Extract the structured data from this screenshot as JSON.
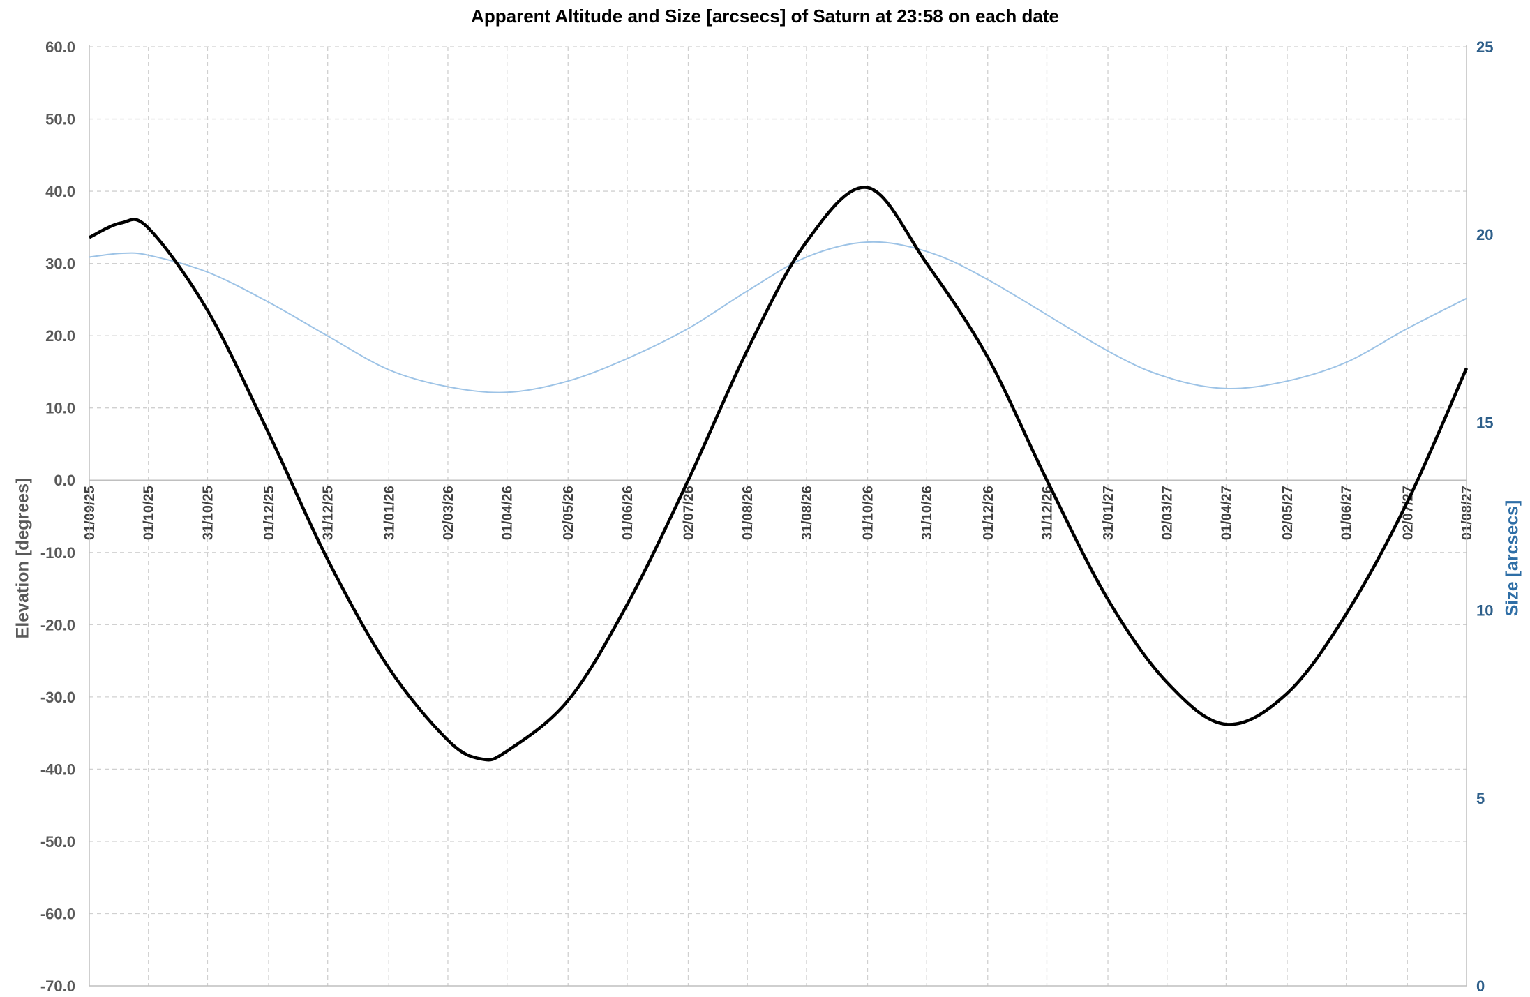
{
  "chart_data": {
    "type": "line",
    "title": "Apparent Altitude and Size [arcsecs] of Saturn at 23:58 on each date",
    "ylabel": "Elevation [degrees]",
    "ylabel_right": "Size [arcsecs]",
    "xlabel": "",
    "x_tick_labels": [
      "01/09/25",
      "01/10/25",
      "31/10/25",
      "01/12/25",
      "31/12/25",
      "31/01/26",
      "02/03/26",
      "01/04/26",
      "02/05/26",
      "01/06/26",
      "02/07/26",
      "01/08/26",
      "31/08/26",
      "01/10/26",
      "31/10/26",
      "01/12/26",
      "31/12/26",
      "31/01/27",
      "02/03/27",
      "01/04/27",
      "02/05/27",
      "01/06/27",
      "02/07/27",
      "01/08/27"
    ],
    "y_tick_labels": [
      "60.0",
      "50.0",
      "40.0",
      "30.0",
      "20.0",
      "10.0",
      "0.0",
      "-10.0",
      "-20.0",
      "-30.0",
      "-40.0",
      "-50.0",
      "-60.0",
      "-70.0"
    ],
    "y_right_tick_labels": [
      "25",
      "20",
      "15",
      "10",
      "5",
      "0"
    ],
    "xlim": [
      "01/09/25",
      "01/08/27"
    ],
    "ylim": [
      -70,
      60
    ],
    "ylim_right": [
      0,
      25
    ],
    "grid": true,
    "colors": {
      "elevation": "#000000",
      "size": "#9dc3e6",
      "left_axis_text": "#595959",
      "right_axis_text": "#2e5f8a",
      "grid": "#d0d0d0"
    },
    "series": [
      {
        "axis": "left",
        "x": [
          "01/09/25",
          "17/09/25",
          "01/10/25",
          "31/10/25",
          "01/12/25",
          "31/12/25",
          "31/01/26",
          "02/03/26",
          "19/03/26",
          "01/04/26",
          "02/05/26",
          "01/06/26",
          "02/07/26",
          "01/08/26",
          "31/08/26",
          "01/10/26",
          "31/10/26",
          "01/12/26",
          "31/12/26",
          "31/01/27",
          "02/03/27",
          "01/04/27",
          "02/05/27",
          "01/06/27",
          "02/07/27",
          "01/08/27"
        ],
        "values": [
          33.6,
          35.6,
          34.9,
          23.5,
          6.5,
          -11.0,
          -26.0,
          -36.0,
          -38.6,
          -37.5,
          -30.5,
          -17.2,
          0.0,
          18.0,
          33.0,
          40.5,
          30.0,
          17.0,
          0.0,
          -16.5,
          -28.0,
          -33.8,
          -29.5,
          -18.5,
          -3.0,
          15.5
        ]
      },
      {
        "axis": "right",
        "x": [
          "01/09/25",
          "17/09/25",
          "01/10/25",
          "31/10/25",
          "01/12/25",
          "31/12/25",
          "31/01/26",
          "02/03/26",
          "01/04/26",
          "02/05/26",
          "01/06/26",
          "02/07/26",
          "01/08/26",
          "31/08/26",
          "01/10/26",
          "31/10/26",
          "01/12/26",
          "31/01/27",
          "02/03/27",
          "01/04/27",
          "02/05/27",
          "01/06/27",
          "02/07/27",
          "01/08/27"
        ],
        "values": [
          19.4,
          19.5,
          19.45,
          19.0,
          18.2,
          17.3,
          16.4,
          15.95,
          15.8,
          16.1,
          16.7,
          17.5,
          18.5,
          19.4,
          19.8,
          19.55,
          18.8,
          16.9,
          16.2,
          15.9,
          16.1,
          16.6,
          17.5,
          18.3
        ]
      }
    ]
  }
}
